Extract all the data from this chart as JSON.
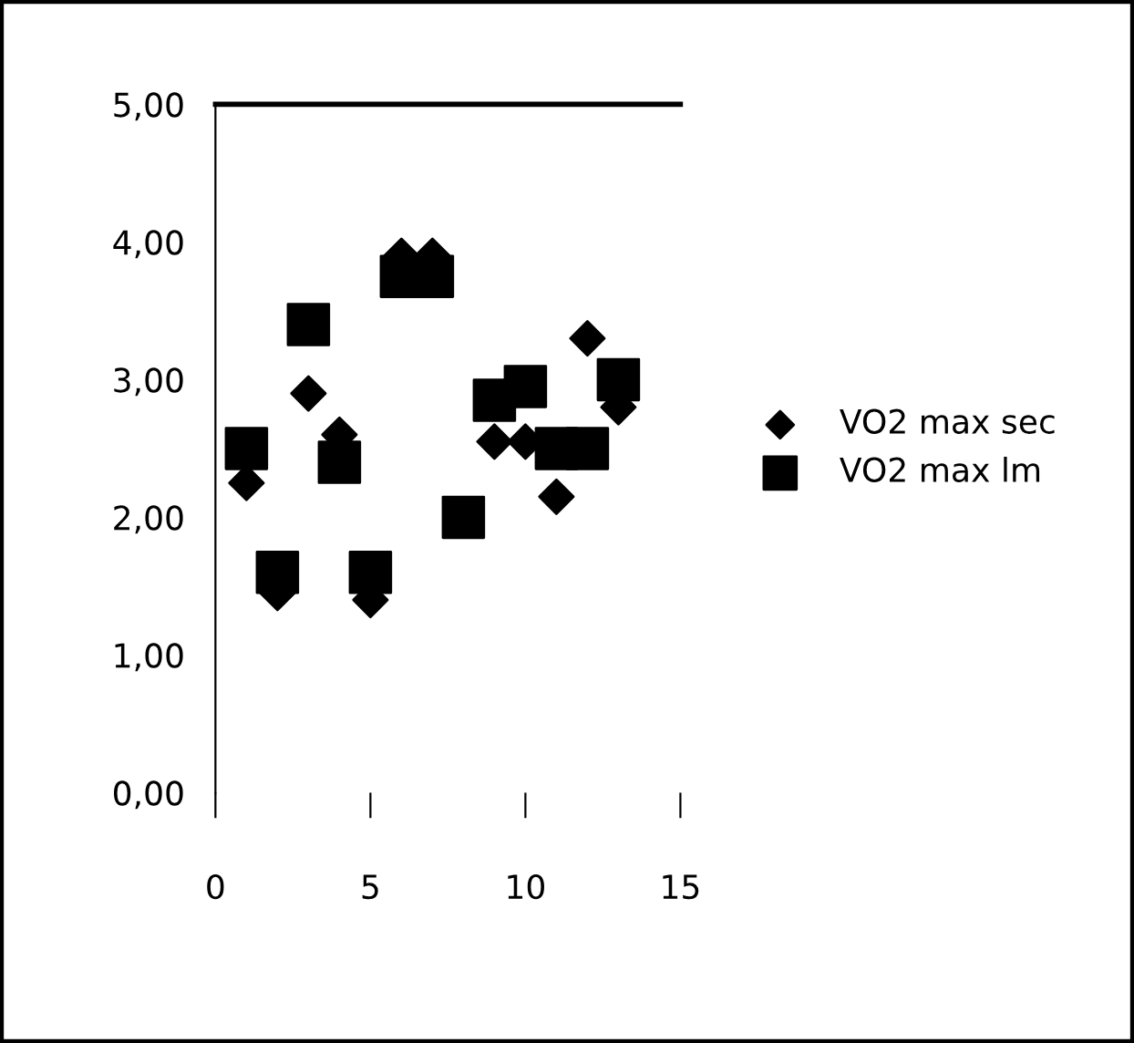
{
  "chart_data": {
    "type": "scatter",
    "xlim": [
      0,
      15
    ],
    "xticks": [
      0,
      5,
      10,
      15
    ],
    "ylim": [
      0,
      5
    ],
    "yticks": [
      {
        "value": 0,
        "label": "0,00"
      },
      {
        "value": 1,
        "label": "1,00"
      },
      {
        "value": 2,
        "label": "2,00"
      },
      {
        "value": 3,
        "label": "3,00"
      },
      {
        "value": 4,
        "label": "4,00"
      },
      {
        "value": 5,
        "label": "5,00"
      }
    ],
    "grid": false,
    "legend": "right",
    "x": [
      1,
      2,
      3,
      4,
      5,
      6,
      7,
      8,
      9,
      10,
      11,
      12,
      13
    ],
    "series": [
      {
        "name": "VO2 max sec",
        "color": "#000000",
        "marker": "diamond",
        "values": [
          2.25,
          1.45,
          2.9,
          2.6,
          1.4,
          3.9,
          3.9,
          null,
          2.55,
          2.55,
          2.15,
          3.3,
          2.8
        ]
      },
      {
        "name": "VO2 max lm",
        "color": "#000000",
        "marker": "square",
        "values": [
          2.5,
          1.6,
          3.4,
          2.4,
          1.6,
          3.75,
          3.75,
          2.0,
          2.85,
          2.95,
          2.5,
          2.5,
          3.0
        ]
      }
    ]
  }
}
